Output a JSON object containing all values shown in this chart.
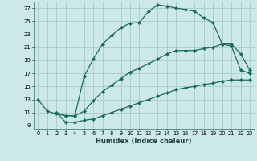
{
  "xlabel": "Humidex (Indice chaleur)",
  "bg_color": "#cce8e8",
  "grid_color": "#aacfcf",
  "line_color": "#1a6b5a",
  "xlim": [
    -0.5,
    23.5
  ],
  "ylim": [
    8.5,
    28.0
  ],
  "xticks": [
    0,
    1,
    2,
    3,
    4,
    5,
    6,
    7,
    8,
    9,
    10,
    11,
    12,
    13,
    14,
    15,
    16,
    17,
    18,
    19,
    20,
    21,
    22,
    23
  ],
  "yticks": [
    9,
    11,
    13,
    15,
    17,
    19,
    21,
    23,
    25,
    27
  ],
  "line1_x": [
    0,
    1,
    2,
    3,
    4,
    5,
    6,
    7,
    8,
    9,
    10,
    11,
    12,
    13,
    14,
    15,
    16,
    17,
    18,
    19,
    20,
    21,
    22,
    23
  ],
  "line1_y": [
    13,
    11.2,
    10.8,
    10.5,
    10.5,
    16.5,
    19.2,
    21.5,
    22.8,
    24.0,
    24.7,
    24.8,
    26.5,
    27.5,
    27.3,
    27.0,
    26.8,
    26.5,
    25.5,
    24.8,
    21.5,
    21.2,
    17.5,
    17.0
  ],
  "line2_x": [
    2,
    3,
    4,
    5,
    6,
    7,
    8,
    9,
    10,
    11,
    12,
    13,
    14,
    15,
    16,
    17,
    18,
    19,
    20,
    21,
    22,
    23
  ],
  "line2_y": [
    11.0,
    10.5,
    10.5,
    11.2,
    12.8,
    14.2,
    15.2,
    16.2,
    17.2,
    17.8,
    18.5,
    19.2,
    20.0,
    20.5,
    20.5,
    20.5,
    20.8,
    21.0,
    21.5,
    21.5,
    20.0,
    17.5
  ],
  "line3_x": [
    2,
    3,
    4,
    5,
    6,
    7,
    8,
    9,
    10,
    11,
    12,
    13,
    14,
    15,
    16,
    17,
    18,
    19,
    20,
    21,
    22,
    23
  ],
  "line3_y": [
    11.0,
    9.5,
    9.5,
    9.8,
    10.0,
    10.5,
    11.0,
    11.5,
    12.0,
    12.5,
    13.0,
    13.5,
    14.0,
    14.5,
    14.8,
    15.0,
    15.3,
    15.5,
    15.8,
    16.0,
    16.0,
    16.0
  ]
}
